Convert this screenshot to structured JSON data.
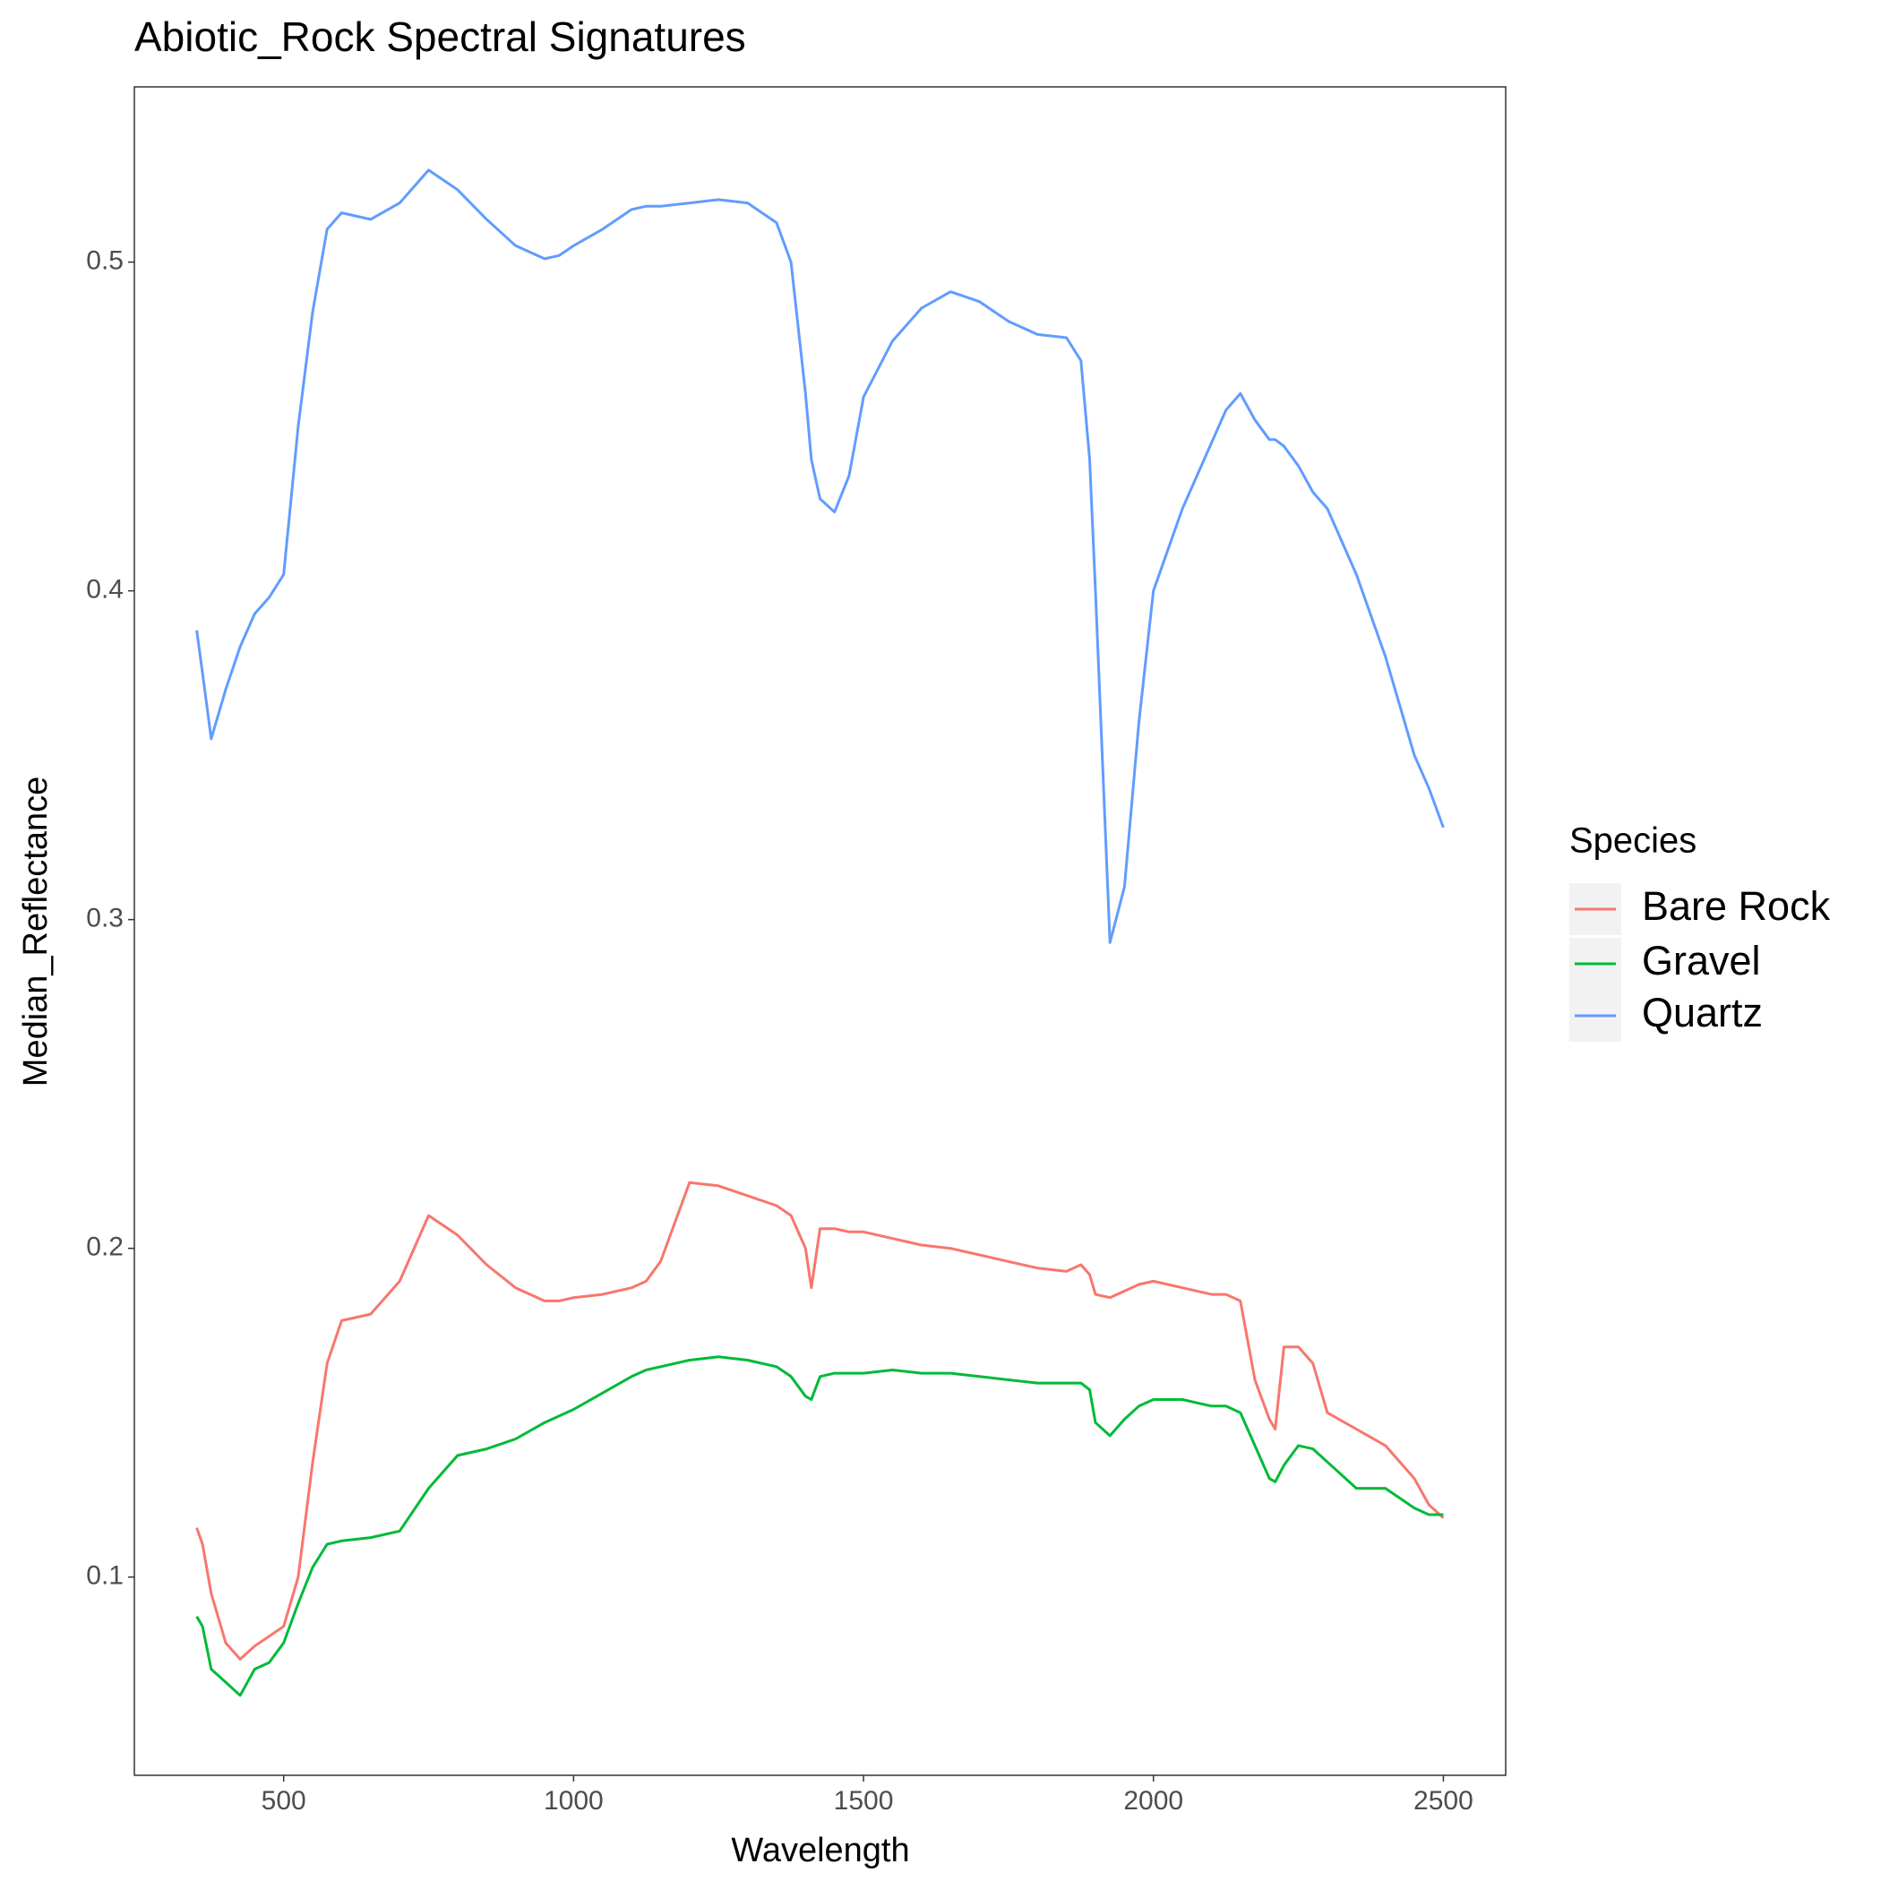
{
  "chart_data": {
    "type": "line",
    "title": "Abiotic_Rock Spectral Signatures",
    "x_label": "Wavelength",
    "y_label": "Median_Reflectance",
    "legend_title": "Species",
    "legend_position": "right",
    "grid": false,
    "xlim": [
      242.5,
      2607.5
    ],
    "xticks": [
      500,
      1000,
      1500,
      2000,
      2500
    ],
    "ylim": [
      0.0397,
      0.5533
    ],
    "yticks": [
      0.1,
      0.2,
      0.3,
      0.4,
      0.5
    ],
    "x": [
      350,
      360,
      375,
      400,
      425,
      450,
      475,
      500,
      525,
      550,
      575,
      600,
      650,
      700,
      750,
      800,
      850,
      900,
      950,
      975,
      1000,
      1050,
      1100,
      1125,
      1150,
      1200,
      1250,
      1300,
      1350,
      1375,
      1400,
      1410,
      1425,
      1450,
      1475,
      1500,
      1550,
      1600,
      1650,
      1700,
      1750,
      1800,
      1850,
      1875,
      1890,
      1900,
      1925,
      1950,
      1975,
      2000,
      2050,
      2100,
      2125,
      2150,
      2175,
      2200,
      2210,
      2225,
      2250,
      2275,
      2300,
      2350,
      2400,
      2450,
      2475,
      2500
    ],
    "series": [
      {
        "name": "Bare Rock",
        "color": "#f8766d",
        "values": [
          0.115,
          0.11,
          0.095,
          0.08,
          0.075,
          0.079,
          0.082,
          0.085,
          0.1,
          0.135,
          0.165,
          0.178,
          0.18,
          0.19,
          0.21,
          0.204,
          0.195,
          0.188,
          0.184,
          0.184,
          0.185,
          0.186,
          0.188,
          0.19,
          0.196,
          0.22,
          0.219,
          0.216,
          0.213,
          0.21,
          0.2,
          0.188,
          0.206,
          0.206,
          0.205,
          0.205,
          0.203,
          0.201,
          0.2,
          0.198,
          0.196,
          0.194,
          0.193,
          0.195,
          0.192,
          0.186,
          0.185,
          0.187,
          0.189,
          0.19,
          0.188,
          0.186,
          0.186,
          0.184,
          0.16,
          0.148,
          0.145,
          0.17,
          0.17,
          0.165,
          0.15,
          0.145,
          0.14,
          0.13,
          0.122,
          0.118
        ]
      },
      {
        "name": "Gravel",
        "color": "#00ba38",
        "values": [
          0.088,
          0.085,
          0.072,
          0.068,
          0.064,
          0.072,
          0.074,
          0.08,
          0.092,
          0.103,
          0.11,
          0.111,
          0.112,
          0.114,
          0.127,
          0.137,
          0.139,
          0.142,
          0.147,
          0.149,
          0.151,
          0.156,
          0.161,
          0.163,
          0.164,
          0.166,
          0.167,
          0.166,
          0.164,
          0.161,
          0.155,
          0.154,
          0.161,
          0.162,
          0.162,
          0.162,
          0.163,
          0.162,
          0.162,
          0.161,
          0.16,
          0.159,
          0.159,
          0.159,
          0.157,
          0.147,
          0.143,
          0.148,
          0.152,
          0.154,
          0.154,
          0.152,
          0.152,
          0.15,
          0.14,
          0.13,
          0.129,
          0.134,
          0.14,
          0.139,
          0.135,
          0.127,
          0.127,
          0.121,
          0.119,
          0.119
        ]
      },
      {
        "name": "Quartz",
        "color": "#619cff",
        "values": [
          0.388,
          0.375,
          0.355,
          0.37,
          0.383,
          0.393,
          0.398,
          0.405,
          0.45,
          0.485,
          0.51,
          0.515,
          0.513,
          0.518,
          0.528,
          0.522,
          0.513,
          0.505,
          0.501,
          0.502,
          0.505,
          0.51,
          0.516,
          0.517,
          0.517,
          0.518,
          0.519,
          0.518,
          0.512,
          0.5,
          0.46,
          0.44,
          0.428,
          0.424,
          0.435,
          0.459,
          0.476,
          0.486,
          0.491,
          0.488,
          0.482,
          0.478,
          0.477,
          0.47,
          0.44,
          0.4,
          0.293,
          0.31,
          0.36,
          0.4,
          0.425,
          0.445,
          0.455,
          0.46,
          0.452,
          0.446,
          0.446,
          0.444,
          0.438,
          0.43,
          0.425,
          0.405,
          0.38,
          0.35,
          0.34,
          0.328
        ]
      }
    ]
  }
}
